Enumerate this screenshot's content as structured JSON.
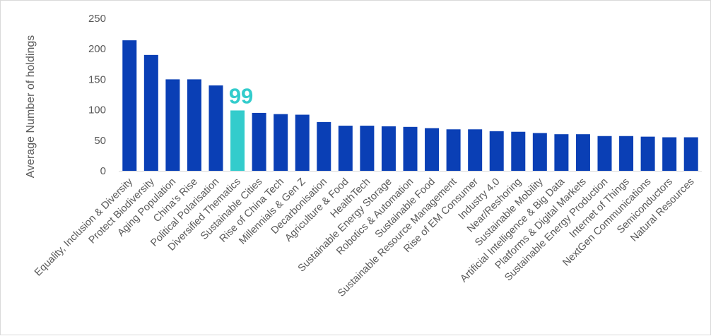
{
  "chart_data": {
    "type": "bar",
    "title": "",
    "xlabel": "",
    "ylabel": "Average Number of holdings",
    "ylim": [
      0,
      250
    ],
    "yticks": [
      0,
      50,
      100,
      150,
      200,
      250
    ],
    "grid": false,
    "legend": "none",
    "categories": [
      "Equality, Inclusion & Diversity",
      "Protect Biodiversity",
      "Aging Population",
      "China's Rise",
      "Political Polarisation",
      "Diversified Thematics",
      "Sustainable Cities",
      "Rise of China Tech",
      "Millennials & Gen Z",
      "Decarbonisation",
      "Agriculture & Food",
      "HealthTech",
      "Sustainable Energy Storage",
      "Robotics & Automation",
      "Sustainable Food",
      "Sustainable Resource Management",
      "Rise of EM Consumer",
      "Industry 4.0",
      "Near/Reshoring",
      "Sustainable Mobility",
      "Artificial Intelligence & Big Data",
      "Platforms & Digital Markets",
      "Sustainable Energy Production",
      "Internet of Things",
      "NextGen Communications",
      "Semiconductors",
      "Natural Resources"
    ],
    "values": [
      214,
      190,
      150,
      150,
      140,
      99,
      95,
      93,
      92,
      80,
      74,
      74,
      73,
      72,
      70,
      68,
      68,
      65,
      64,
      62,
      60,
      60,
      57,
      57,
      56,
      55,
      55
    ],
    "highlight_index": 5,
    "highlight_label": "99",
    "colors": {
      "bar": "#0a3fb5",
      "highlight": "#33cccc",
      "axis": "#d9d9d9",
      "text": "#595959"
    }
  }
}
